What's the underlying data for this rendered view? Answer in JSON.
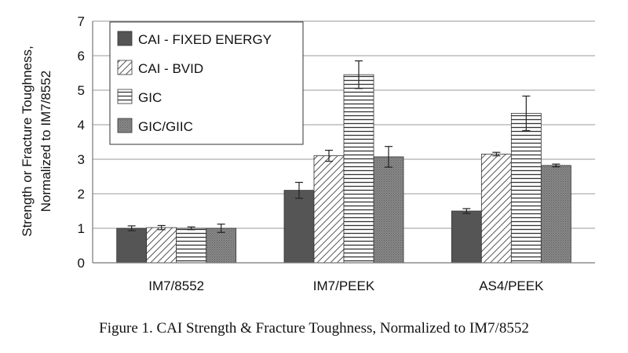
{
  "chart_data": {
    "type": "bar",
    "title": "",
    "xlabel": "",
    "ylabel_lines": [
      "Strength or Fracture Toughness,",
      "Normalized to IM7/8552"
    ],
    "ylim": [
      0,
      7
    ],
    "yticks": [
      0,
      1,
      2,
      3,
      4,
      5,
      6,
      7
    ],
    "grid": "horizontal",
    "legend_position": "top-left",
    "categories": [
      "IM7/8552",
      "IM7/PEEK",
      "AS4/PEEK"
    ],
    "series": [
      {
        "name": "CAI - FIXED ENERGY",
        "pattern": "solid-dark",
        "values": [
          1.0,
          2.1,
          1.5
        ],
        "errors": [
          0.07,
          0.23,
          0.07
        ]
      },
      {
        "name": "CAI - BVID",
        "pattern": "diagonal-hatch",
        "values": [
          1.02,
          3.1,
          3.15
        ],
        "errors": [
          0.06,
          0.16,
          0.05
        ]
      },
      {
        "name": "GIC",
        "pattern": "horizontal-lines",
        "values": [
          1.0,
          5.45,
          4.33
        ],
        "errors": [
          0.04,
          0.4,
          0.5
        ]
      },
      {
        "name": "GIC/GIIC",
        "pattern": "stipple-gray",
        "values": [
          1.0,
          3.07,
          2.82
        ],
        "errors": [
          0.12,
          0.3,
          0.04
        ]
      }
    ]
  },
  "caption": "Figure 1. CAI Strength & Fracture Toughness, Normalized to IM7/8552"
}
